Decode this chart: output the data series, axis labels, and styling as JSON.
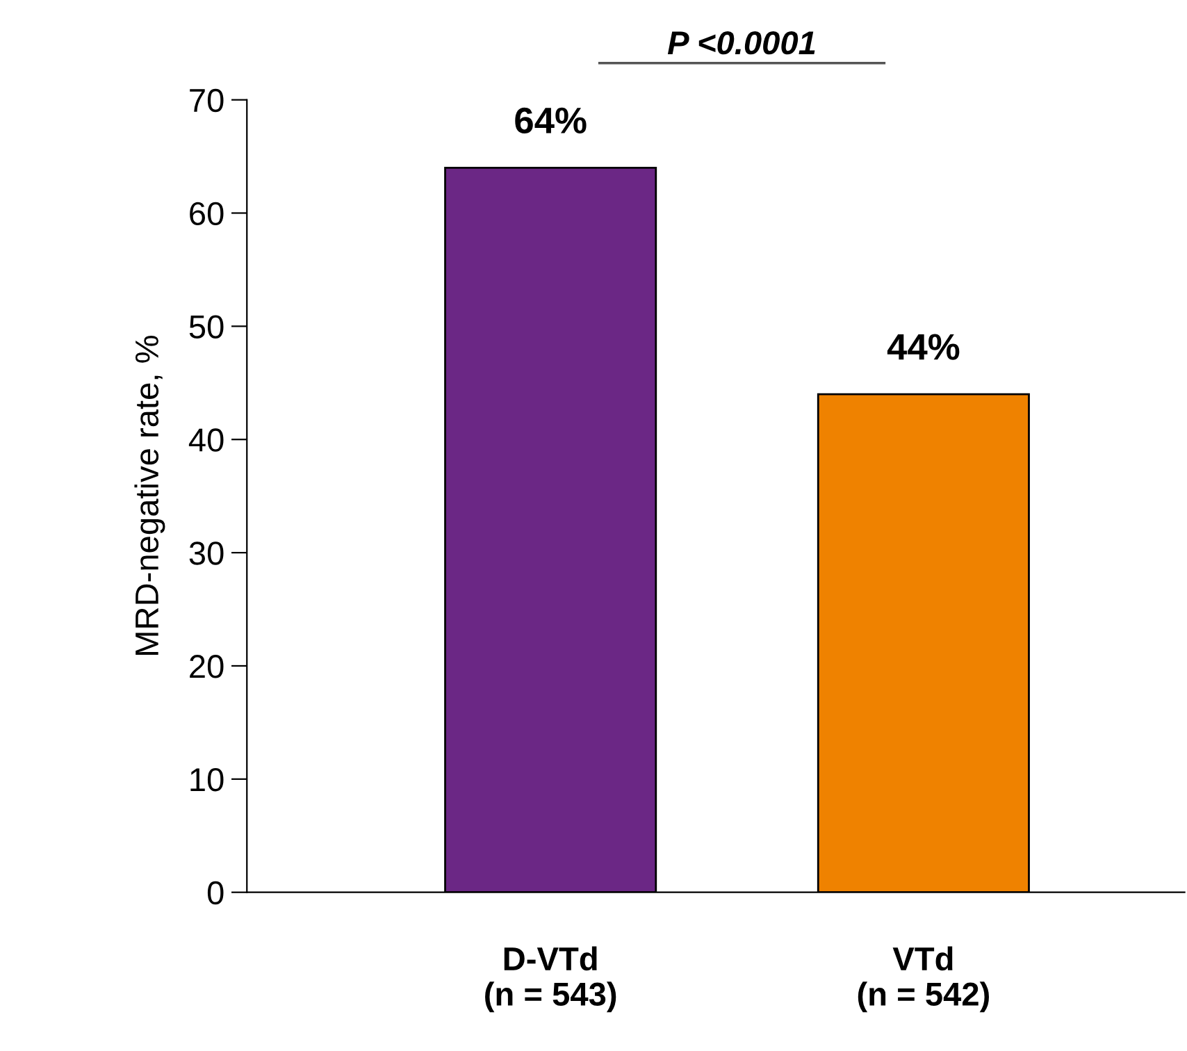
{
  "chart_data": {
    "type": "bar",
    "ylabel": "MRD-negative rate, %",
    "categories": [
      "D-VTd\n(n = 543)",
      "VTd\n(n = 542)"
    ],
    "values": [
      64,
      44
    ],
    "colors": [
      "#6b2785",
      "#ef8200"
    ],
    "value_labels": [
      "64%",
      "44%"
    ],
    "ylim": [
      0,
      70
    ],
    "yticks": [
      0,
      10,
      20,
      30,
      40,
      50,
      60,
      70
    ],
    "annotations": [
      "P <0.0001"
    ],
    "grid": false,
    "legend": false
  }
}
